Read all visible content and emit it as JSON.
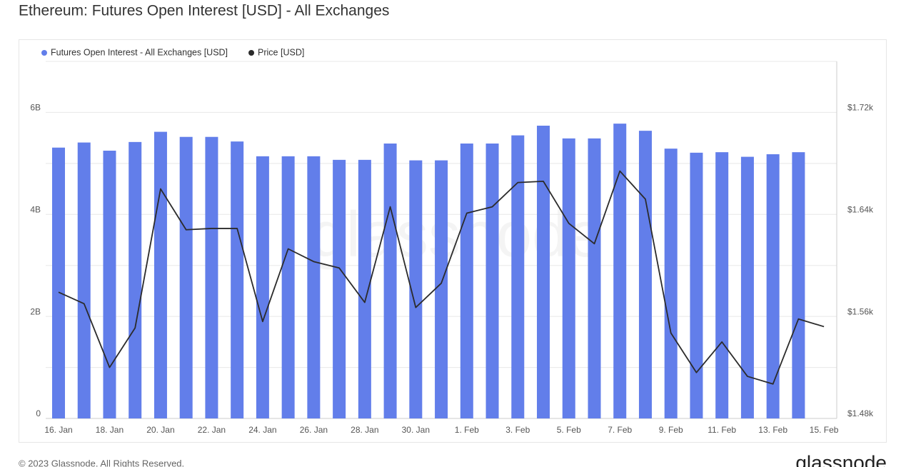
{
  "chart_data": {
    "type": "bar-line",
    "title": "Ethereum: Futures Open Interest [USD] - All Exchanges",
    "watermark": "glassnode",
    "footer": "© 2023 Glassnode. All Rights Reserved.",
    "logo": "glassnode",
    "categories": [
      "16. Jan",
      null,
      "18. Jan",
      null,
      "20. Jan",
      null,
      "22. Jan",
      null,
      "24. Jan",
      null,
      "26. Jan",
      null,
      "28. Jan",
      null,
      "30. Jan",
      null,
      "1. Feb",
      null,
      "3. Feb",
      null,
      "5. Feb",
      null,
      "7. Feb",
      null,
      "9. Feb",
      null,
      "11. Feb",
      null,
      "13. Feb",
      null,
      "15. Feb"
    ],
    "series": [
      {
        "name": "Futures Open Interest - All Exchanges [USD]",
        "color": "#627eea",
        "type": "bar",
        "values": [
          5.31,
          5.41,
          5.25,
          5.42,
          5.62,
          5.52,
          5.52,
          5.43,
          5.14,
          5.14,
          5.14,
          5.07,
          5.07,
          5.39,
          5.06,
          5.06,
          5.39,
          5.39,
          5.55,
          5.74,
          5.49,
          5.49,
          5.78,
          5.64,
          5.29,
          5.21,
          5.22,
          5.13,
          5.18,
          5.22,
          null
        ]
      },
      {
        "name": "Price [USD]",
        "color": "#2b2b2b",
        "type": "line",
        "axis": "y2",
        "values": [
          1579,
          1570,
          1520,
          1551,
          1660,
          1628,
          1629,
          1629,
          1556,
          1613,
          1603,
          1598,
          1571,
          1646,
          1567,
          1586,
          1641,
          1646,
          1665,
          1666,
          1633,
          1617,
          1674,
          1652,
          1547,
          1516,
          1540,
          1513,
          1507,
          1558,
          1552
        ]
      }
    ],
    "ylim": [
      0,
      7
    ],
    "yticks": [
      0,
      {
        "value": 2,
        "label": "2B"
      },
      {
        "value": 4,
        "label": "4B"
      },
      {
        "value": 6,
        "label": "6B"
      }
    ],
    "grid_yticks": [
      1,
      2,
      3,
      4,
      5,
      6
    ],
    "y2lim": [
      1480,
      1760
    ],
    "y2ticks": [
      {
        "value": 1480,
        "label": "$1.48k"
      },
      {
        "value": 1560,
        "label": "$1.56k"
      },
      {
        "value": 1640,
        "label": "$1.64k"
      },
      {
        "value": 1720,
        "label": "$1.72k"
      }
    ],
    "grid": true,
    "legend": "top-left"
  }
}
